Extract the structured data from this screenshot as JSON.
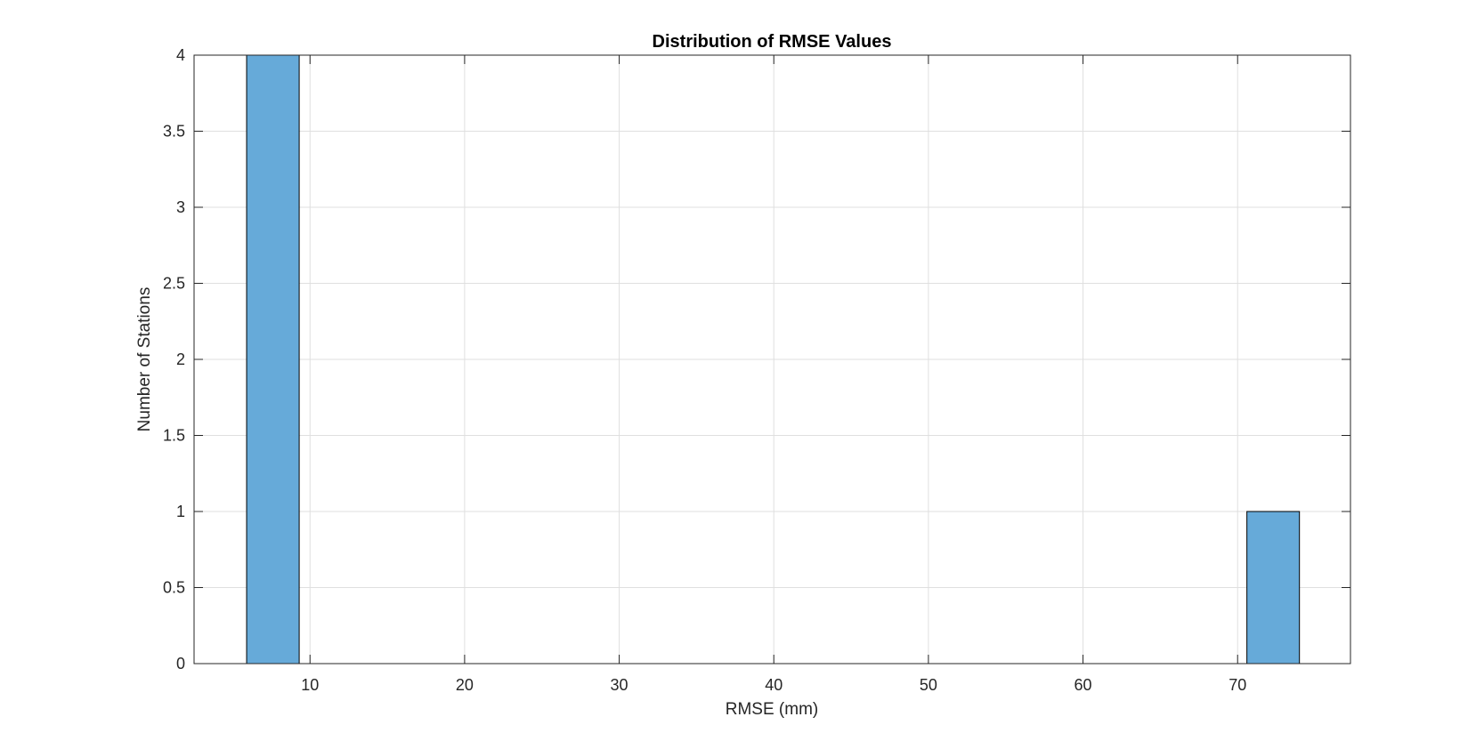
{
  "chart_data": {
    "type": "bar",
    "title": "Distribution of RMSE Values",
    "xlabel": "RMSE (mm)",
    "ylabel": "Number of Stations",
    "xlim": [
      2.5,
      77.3
    ],
    "ylim": [
      0,
      4
    ],
    "xticks": [
      10,
      20,
      30,
      40,
      50,
      60,
      70
    ],
    "xtick_labels": [
      "10",
      "20",
      "30",
      "40",
      "50",
      "60",
      "70"
    ],
    "yticks": [
      0,
      0.5,
      1,
      1.5,
      2,
      2.5,
      3,
      3.5,
      4
    ],
    "ytick_labels": [
      "0",
      "0.5",
      "1",
      "1.5",
      "2",
      "2.5",
      "3",
      "3.5",
      "4"
    ],
    "grid": true,
    "bar_color": "#66aad9",
    "bins": [
      {
        "x_start": 5.9,
        "x_end": 9.3,
        "count": 4
      },
      {
        "x_start": 70.6,
        "x_end": 74.0,
        "count": 1
      }
    ]
  }
}
